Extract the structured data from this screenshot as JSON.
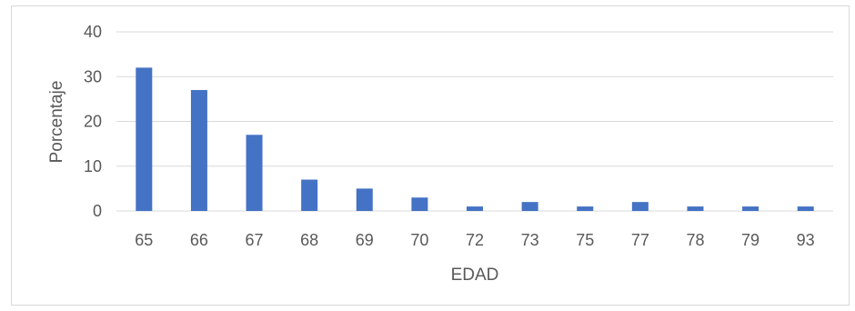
{
  "chart_data": {
    "type": "bar",
    "categories": [
      "65",
      "66",
      "67",
      "68",
      "69",
      "70",
      "72",
      "73",
      "75",
      "77",
      "78",
      "79",
      "93"
    ],
    "values": [
      32,
      27,
      17,
      7,
      5,
      3,
      1,
      2,
      1,
      2,
      1,
      1,
      1
    ],
    "xlabel": "EDAD",
    "ylabel": "Porcentaje",
    "ylim": [
      0,
      40
    ],
    "yticks": [
      "0",
      "10",
      "20",
      "30",
      "40"
    ],
    "grid": true,
    "legend": "none",
    "bar_color": "#4472c4",
    "grid_color": "#d9d9d9"
  }
}
